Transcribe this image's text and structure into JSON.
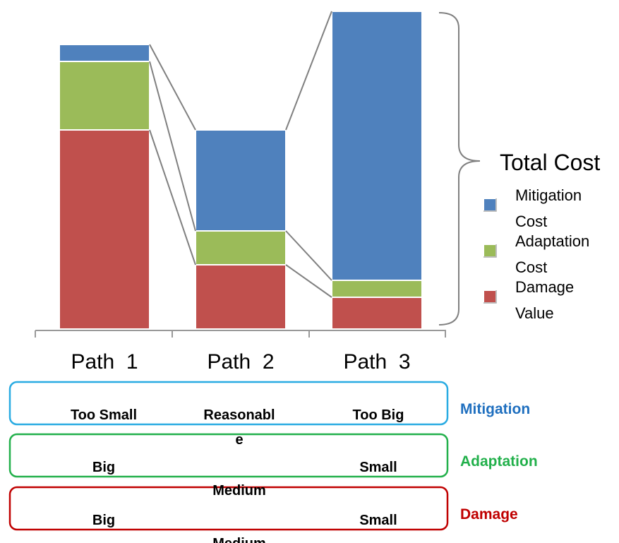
{
  "chart_data": {
    "type": "stacked_bar",
    "categories": [
      "Path  1",
      "Path  2",
      "Path  3"
    ],
    "series": [
      {
        "name": "Damage Value",
        "color": "#c0504d",
        "values": [
          282,
          91,
          45
        ]
      },
      {
        "name": "Adaptation Cost",
        "color": "#9bbb59",
        "values": [
          97,
          48,
          24
        ]
      },
      {
        "name": "Mitigation Cost",
        "color": "#4f81bd",
        "values": [
          24,
          143,
          381
        ]
      }
    ],
    "annotation": "Total Cost"
  },
  "table": {
    "rows": [
      {
        "label": "Mitigation",
        "color": "#1f6fbf",
        "border": "#29abe2",
        "cells": [
          "Too Small",
          "Reasonable",
          "Too Big"
        ]
      },
      {
        "label": "Adaptation",
        "color": "#22b04b",
        "border": "#22b04b",
        "cells": [
          "Big",
          "Medium",
          "Small"
        ]
      },
      {
        "label": "Damage",
        "color": "#c00000",
        "border": "#c00000",
        "cells": [
          "Big",
          "Medium",
          "Small"
        ]
      }
    ]
  }
}
